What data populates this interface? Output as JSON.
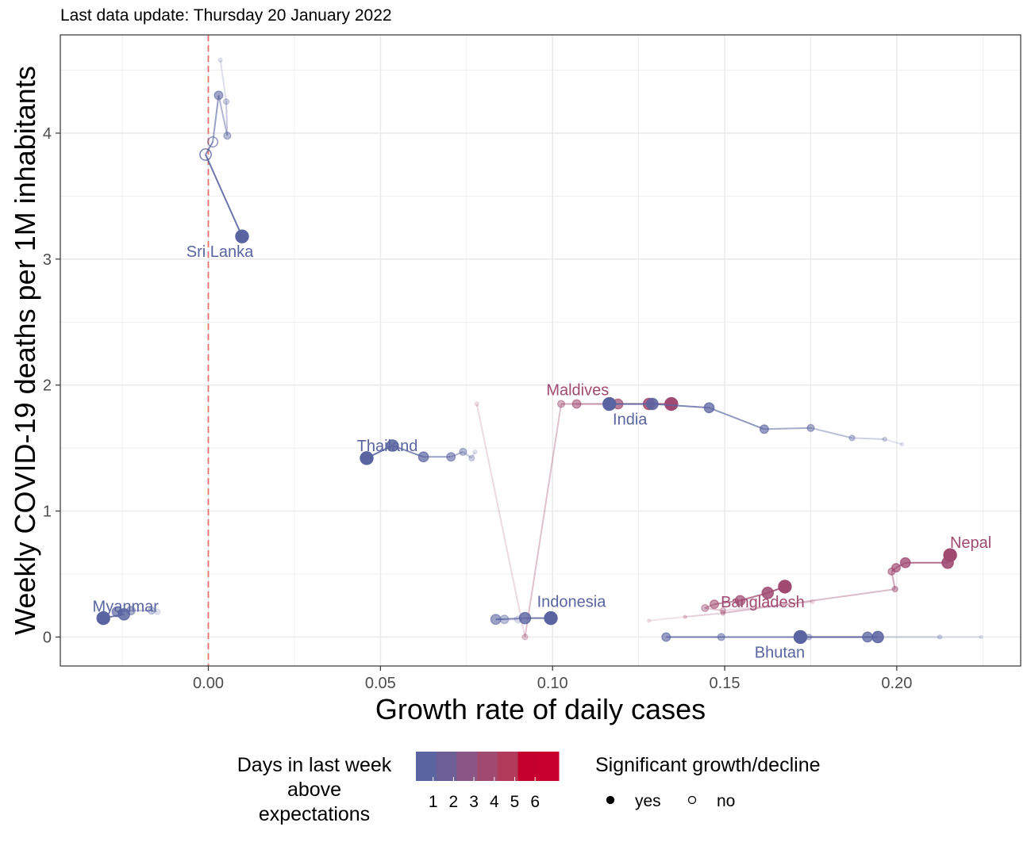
{
  "subtitle": "Last data update: Thursday 20 January 2022",
  "chart_data": {
    "type": "scatter",
    "xlabel": "Growth rate of daily cases",
    "ylabel": "Weekly COVID-19 deaths per 1M inhabitants",
    "xlim": [
      -0.043,
      0.236
    ],
    "ylim": [
      -0.23,
      4.78
    ],
    "x_ticks": [
      0.0,
      0.05,
      0.1,
      0.15,
      0.2
    ],
    "x_tick_labels": [
      "0.00",
      "0.05",
      "0.10",
      "0.15",
      "0.20"
    ],
    "y_ticks": [
      0,
      1,
      2,
      3,
      4
    ],
    "y_tick_labels": [
      "0",
      "1",
      "2",
      "3",
      "4"
    ],
    "grid": true,
    "reference_line": {
      "x": 0,
      "color": "#e8746b",
      "style": "dashed"
    },
    "colors": {
      "1": "#5a64a0",
      "2": "#6e5e96",
      "3": "#8a5686",
      "4": "#a04a72",
      "5": "#b23a5a",
      "6": "#c4002c"
    },
    "legend": {
      "color_title": [
        "Days in last week",
        "above",
        "expectations"
      ],
      "color_scale": [
        "#5a64a0",
        "#6e5e96",
        "#8a5686",
        "#a04a72",
        "#b23a5a",
        "#c4002c",
        "#c70030"
      ],
      "color_ticks": [
        "1",
        "2",
        "3",
        "4",
        "5",
        "6"
      ],
      "shape_title": "Significant growth/decline",
      "shape_items": [
        {
          "label": "yes",
          "filled": true
        },
        {
          "label": "no",
          "filled": false
        }
      ],
      "position": "bottom"
    },
    "series": [
      {
        "name": "Sri Lanka",
        "color": "#5a64a0",
        "points": [
          [
            0.0098,
            3.18,
            true
          ],
          [
            -0.0008,
            3.83,
            false
          ],
          [
            0.0013,
            3.93,
            false
          ],
          [
            0.003,
            4.3,
            true
          ],
          [
            0.0055,
            3.98,
            true
          ],
          [
            0.0052,
            4.25,
            true
          ],
          [
            0.0035,
            4.58,
            true
          ]
        ]
      },
      {
        "name": "Maldives",
        "color": "#a04a72",
        "points": [
          [
            0.1345,
            1.85,
            true
          ],
          [
            0.128,
            1.85,
            true
          ],
          [
            0.119,
            1.85,
            true
          ],
          [
            0.107,
            1.85,
            true
          ],
          [
            0.1025,
            1.85,
            true
          ],
          [
            0.092,
            0.0,
            true
          ],
          [
            0.078,
            1.85,
            true
          ]
        ]
      },
      {
        "name": "India",
        "color": "#5a64a0",
        "points": [
          [
            0.1165,
            1.85,
            true
          ],
          [
            0.129,
            1.85,
            true
          ],
          [
            0.1455,
            1.82,
            true
          ],
          [
            0.1615,
            1.65,
            true
          ],
          [
            0.175,
            1.66,
            true
          ],
          [
            0.187,
            1.58,
            true
          ],
          [
            0.1965,
            1.57,
            true
          ],
          [
            0.2015,
            1.53,
            true
          ]
        ]
      },
      {
        "name": "Thailand",
        "color": "#5a64a0",
        "points": [
          [
            0.046,
            1.42,
            true
          ],
          [
            0.0535,
            1.52,
            true
          ],
          [
            0.0625,
            1.43,
            true
          ],
          [
            0.0705,
            1.43,
            true
          ],
          [
            0.074,
            1.47,
            true
          ],
          [
            0.0765,
            1.42,
            true
          ],
          [
            0.0775,
            1.47,
            true
          ]
        ]
      },
      {
        "name": "Myanmar",
        "color": "#5a64a0",
        "points": [
          [
            -0.0305,
            0.15,
            true
          ],
          [
            -0.0245,
            0.18,
            true
          ],
          [
            -0.0265,
            0.2,
            true
          ],
          [
            -0.0225,
            0.21,
            true
          ],
          [
            -0.0165,
            0.21,
            true
          ],
          [
            -0.0148,
            0.2,
            true
          ]
        ]
      },
      {
        "name": "Indonesia",
        "color": "#5a64a0",
        "points": [
          [
            0.0995,
            0.15,
            true
          ],
          [
            0.092,
            0.15,
            true
          ],
          [
            0.0835,
            0.14,
            true
          ],
          [
            0.086,
            0.14,
            true
          ],
          [
            0.09,
            0.14,
            true
          ]
        ]
      },
      {
        "name": "Nepal",
        "color": "#a04a72",
        "points": [
          [
            0.2155,
            0.65,
            true
          ],
          [
            0.2148,
            0.59,
            true
          ],
          [
            0.2025,
            0.59,
            true
          ],
          [
            0.1998,
            0.55,
            true
          ],
          [
            0.1985,
            0.52,
            true
          ],
          [
            0.1995,
            0.38,
            true
          ],
          [
            0.1495,
            0.19,
            true
          ],
          [
            0.1385,
            0.16,
            true
          ],
          [
            0.128,
            0.13,
            true
          ]
        ]
      },
      {
        "name": "Bangladesh",
        "color": "#a04a72",
        "points": [
          [
            0.1675,
            0.4,
            true
          ],
          [
            0.1625,
            0.35,
            true
          ],
          [
            0.1545,
            0.29,
            true
          ],
          [
            0.147,
            0.26,
            true
          ],
          [
            0.1443,
            0.23,
            true
          ],
          [
            0.1495,
            0.21,
            true
          ],
          [
            0.1755,
            0.28,
            true
          ]
        ]
      },
      {
        "name": "Bhutan",
        "color": "#5a64a0",
        "points": [
          [
            0.172,
            0.0,
            true
          ],
          [
            0.1945,
            0.0,
            true
          ],
          [
            0.1915,
            0.0,
            true
          ],
          [
            0.133,
            0.0,
            true
          ],
          [
            0.149,
            0.0,
            true
          ],
          [
            0.1745,
            0.0,
            true
          ],
          [
            0.2125,
            0.0,
            true
          ],
          [
            0.2245,
            0.0,
            true
          ]
        ]
      }
    ]
  }
}
